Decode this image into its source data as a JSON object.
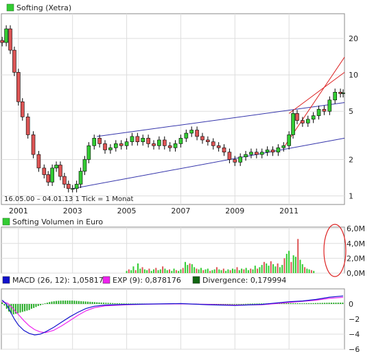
{
  "chart_data": [
    {
      "type": "candlestick",
      "legend": "Softing (Xetra)",
      "legend_color": "#33cc33",
      "note": "16.05.00 – 04.01.13   1 Tick = 1 Monat",
      "scale": "log",
      "ylim": [
        0.85,
        32
      ],
      "yticks": [
        1,
        2,
        5,
        10,
        20
      ],
      "xlim": [
        2000.37,
        2013.05
      ],
      "xticks": [
        {
          "x": 2001,
          "label": "2001"
        },
        {
          "x": 2003,
          "label": "2003"
        },
        {
          "x": 2005,
          "label": "2005"
        },
        {
          "x": 2007,
          "label": "2007"
        },
        {
          "x": 2009,
          "label": "2009"
        },
        {
          "x": 2011,
          "label": "2011"
        }
      ],
      "close_series": [
        [
          2000.4,
          18.5
        ],
        [
          2000.55,
          24.0
        ],
        [
          2000.7,
          16.0
        ],
        [
          2000.85,
          10.5
        ],
        [
          2001.0,
          6.0
        ],
        [
          2001.15,
          4.5
        ],
        [
          2001.35,
          3.2
        ],
        [
          2001.55,
          2.2
        ],
        [
          2001.75,
          1.7
        ],
        [
          2001.95,
          1.5
        ],
        [
          2002.1,
          1.3
        ],
        [
          2002.25,
          1.7
        ],
        [
          2002.4,
          1.8
        ],
        [
          2002.55,
          1.45
        ],
        [
          2002.7,
          1.25
        ],
        [
          2002.85,
          1.15
        ],
        [
          2003.0,
          1.15
        ],
        [
          2003.15,
          1.25
        ],
        [
          2003.3,
          1.6
        ],
        [
          2003.45,
          2.0
        ],
        [
          2003.6,
          2.6
        ],
        [
          2003.8,
          3.0
        ],
        [
          2004.0,
          2.7
        ],
        [
          2004.2,
          2.4
        ],
        [
          2004.4,
          2.5
        ],
        [
          2004.6,
          2.7
        ],
        [
          2004.8,
          2.6
        ],
        [
          2005.0,
          2.8
        ],
        [
          2005.2,
          3.1
        ],
        [
          2005.4,
          2.8
        ],
        [
          2005.6,
          3.0
        ],
        [
          2005.8,
          2.7
        ],
        [
          2006.0,
          2.6
        ],
        [
          2006.2,
          2.9
        ],
        [
          2006.4,
          2.6
        ],
        [
          2006.6,
          2.5
        ],
        [
          2006.8,
          2.7
        ],
        [
          2007.0,
          3.0
        ],
        [
          2007.2,
          3.3
        ],
        [
          2007.4,
          3.5
        ],
        [
          2007.6,
          3.1
        ],
        [
          2007.8,
          2.9
        ],
        [
          2008.0,
          2.8
        ],
        [
          2008.2,
          2.6
        ],
        [
          2008.4,
          2.5
        ],
        [
          2008.6,
          2.3
        ],
        [
          2008.8,
          2.0
        ],
        [
          2009.0,
          1.9
        ],
        [
          2009.2,
          2.1
        ],
        [
          2009.4,
          2.2
        ],
        [
          2009.6,
          2.3
        ],
        [
          2009.8,
          2.2
        ],
        [
          2010.0,
          2.3
        ],
        [
          2010.2,
          2.4
        ],
        [
          2010.4,
          2.3
        ],
        [
          2010.6,
          2.5
        ],
        [
          2010.8,
          2.6
        ],
        [
          2011.0,
          3.2
        ],
        [
          2011.15,
          4.8
        ],
        [
          2011.3,
          4.2
        ],
        [
          2011.5,
          4.0
        ],
        [
          2011.7,
          4.3
        ],
        [
          2011.9,
          4.6
        ],
        [
          2012.1,
          5.2
        ],
        [
          2012.3,
          5.0
        ],
        [
          2012.5,
          6.2
        ],
        [
          2012.7,
          7.2
        ],
        [
          2012.9,
          7.0
        ],
        [
          2013.0,
          7.1
        ]
      ],
      "trendlines": [
        {
          "color": "#3333aa",
          "points": [
            [
              2003.0,
              1.15
            ],
            [
              2013.05,
              3.0
            ]
          ]
        },
        {
          "color": "#3333aa",
          "points": [
            [
              2003.9,
              3.1
            ],
            [
              2013.05,
              5.9
            ]
          ]
        },
        {
          "color": "#dd2222",
          "points": [
            [
              2010.8,
              2.5
            ],
            [
              2013.05,
              14.0
            ]
          ]
        },
        {
          "color": "#dd2222",
          "points": [
            [
              2011.0,
              4.8
            ],
            [
              2013.05,
              10.5
            ]
          ]
        }
      ]
    },
    {
      "type": "bar",
      "legend": "Softing Volumen in Euro",
      "legend_color": "#33cc33",
      "ylim": [
        0,
        6.2
      ],
      "yticks": [
        {
          "v": 0,
          "label": "0,0M"
        },
        {
          "v": 2,
          "label": "2,0M"
        },
        {
          "v": 4,
          "label": "4,0M"
        },
        {
          "v": 6,
          "label": "6,0M"
        }
      ],
      "x_start": 2005.0,
      "x_step": 0.0833,
      "values": [
        0.3,
        0.5,
        0.4,
        0.9,
        0.4,
        1.3,
        0.6,
        0.8,
        0.5,
        0.4,
        0.6,
        0.3,
        0.5,
        0.7,
        0.4,
        0.5,
        0.9,
        0.6,
        0.4,
        0.5,
        0.3,
        0.6,
        0.4,
        0.3,
        0.5,
        0.7,
        1.5,
        1.1,
        1.3,
        1.2,
        0.8,
        0.6,
        0.5,
        0.7,
        0.4,
        0.5,
        0.6,
        0.3,
        0.4,
        0.5,
        0.8,
        0.5,
        0.4,
        0.6,
        0.3,
        0.5,
        0.4,
        0.6,
        0.5,
        0.8,
        0.4,
        0.6,
        0.5,
        0.7,
        0.4,
        0.6,
        0.5,
        1.0,
        0.6,
        0.8,
        1.1,
        1.5,
        1.3,
        1.0,
        1.6,
        1.2,
        0.9,
        1.3,
        0.8,
        1.1,
        2.0,
        2.6,
        3.0,
        1.5,
        2.4,
        2.2,
        4.6,
        1.8,
        1.2,
        0.8,
        0.6,
        0.5,
        0.4,
        0.3
      ],
      "up_color": "#33cc33",
      "down_color": "#dd5555",
      "highlight_ellipse": true
    },
    {
      "type": "line",
      "legend": [
        {
          "name": "MACD (26, 12): 1,05817",
          "color": "#1111cc"
        },
        {
          "name": "EXP (9): 0,878176",
          "color": "#ee22ee"
        },
        {
          "name": "Divergence: 0,179994",
          "color": "#116611"
        }
      ],
      "ylim": [
        -6,
        2
      ],
      "yticks": [
        {
          "v": 0,
          "label": "0"
        },
        {
          "v": -2,
          "label": "−2"
        },
        {
          "v": -4,
          "label": "−4"
        },
        {
          "v": -6,
          "label": "−6"
        }
      ],
      "macd": [
        [
          2000.4,
          0.5
        ],
        [
          2000.55,
          0.0
        ],
        [
          2000.7,
          -1.0
        ],
        [
          2000.85,
          -2.0
        ],
        [
          2001.0,
          -2.8
        ],
        [
          2001.2,
          -3.5
        ],
        [
          2001.4,
          -3.9
        ],
        [
          2001.6,
          -4.1
        ],
        [
          2001.8,
          -4.0
        ],
        [
          2002.0,
          -3.7
        ],
        [
          2002.3,
          -3.1
        ],
        [
          2002.6,
          -2.4
        ],
        [
          2002.9,
          -1.7
        ],
        [
          2003.2,
          -1.1
        ],
        [
          2003.5,
          -0.6
        ],
        [
          2003.8,
          -0.3
        ],
        [
          2004.2,
          -0.15
        ],
        [
          2005.0,
          -0.05
        ],
        [
          2006.0,
          0.0
        ],
        [
          2007.0,
          0.05
        ],
        [
          2008.0,
          -0.1
        ],
        [
          2009.0,
          -0.2
        ],
        [
          2010.0,
          -0.05
        ],
        [
          2011.0,
          0.3
        ],
        [
          2011.5,
          0.4
        ],
        [
          2012.0,
          0.6
        ],
        [
          2012.5,
          0.9
        ],
        [
          2013.0,
          1.06
        ]
      ],
      "exp": [
        [
          2000.4,
          0.3
        ],
        [
          2000.6,
          0.1
        ],
        [
          2000.8,
          -0.6
        ],
        [
          2001.0,
          -1.4
        ],
        [
          2001.2,
          -2.2
        ],
        [
          2001.4,
          -2.9
        ],
        [
          2001.6,
          -3.4
        ],
        [
          2001.8,
          -3.7
        ],
        [
          2002.0,
          -3.8
        ],
        [
          2002.3,
          -3.5
        ],
        [
          2002.6,
          -2.9
        ],
        [
          2002.9,
          -2.2
        ],
        [
          2003.2,
          -1.5
        ],
        [
          2003.5,
          -0.9
        ],
        [
          2003.8,
          -0.5
        ],
        [
          2004.2,
          -0.25
        ],
        [
          2005.0,
          -0.1
        ],
        [
          2006.0,
          -0.02
        ],
        [
          2007.0,
          0.02
        ],
        [
          2008.0,
          -0.05
        ],
        [
          2009.0,
          -0.15
        ],
        [
          2010.0,
          -0.1
        ],
        [
          2011.0,
          0.2
        ],
        [
          2011.5,
          0.35
        ],
        [
          2012.0,
          0.5
        ],
        [
          2012.5,
          0.75
        ],
        [
          2013.0,
          0.88
        ]
      ],
      "divergence": [
        [
          2000.4,
          0.2
        ],
        [
          2000.5,
          -0.3
        ],
        [
          2000.6,
          -0.8
        ],
        [
          2000.7,
          -1.2
        ],
        [
          2000.8,
          -1.4
        ],
        [
          2000.9,
          -1.3
        ],
        [
          2001.0,
          -1.2
        ],
        [
          2001.1,
          -1.1
        ],
        [
          2001.2,
          -1.0
        ],
        [
          2001.3,
          -0.9
        ],
        [
          2001.4,
          -0.8
        ],
        [
          2001.5,
          -0.6
        ],
        [
          2001.6,
          -0.5
        ],
        [
          2001.7,
          -0.3
        ],
        [
          2001.8,
          -0.2
        ],
        [
          2001.9,
          0.0
        ],
        [
          2002.0,
          0.1
        ],
        [
          2002.2,
          0.3
        ],
        [
          2002.4,
          0.4
        ],
        [
          2002.6,
          0.45
        ],
        [
          2002.8,
          0.45
        ],
        [
          2003.0,
          0.45
        ],
        [
          2003.2,
          0.4
        ],
        [
          2003.4,
          0.35
        ],
        [
          2003.6,
          0.3
        ],
        [
          2003.8,
          0.25
        ],
        [
          2004.0,
          0.2
        ],
        [
          2004.3,
          0.15
        ],
        [
          2004.6,
          0.1
        ],
        [
          2005.0,
          0.05
        ],
        [
          2005.5,
          0.05
        ],
        [
          2006.0,
          0.04
        ],
        [
          2006.5,
          0.04
        ],
        [
          2007.0,
          0.05
        ],
        [
          2007.5,
          0.04
        ],
        [
          2008.0,
          -0.05
        ],
        [
          2008.5,
          -0.06
        ],
        [
          2009.0,
          -0.05
        ],
        [
          2009.5,
          0.04
        ],
        [
          2010.0,
          0.06
        ],
        [
          2010.5,
          0.08
        ],
        [
          2011.0,
          0.12
        ],
        [
          2011.5,
          0.08
        ],
        [
          2012.0,
          0.12
        ],
        [
          2012.5,
          0.17
        ],
        [
          2013.0,
          0.18
        ]
      ]
    }
  ]
}
